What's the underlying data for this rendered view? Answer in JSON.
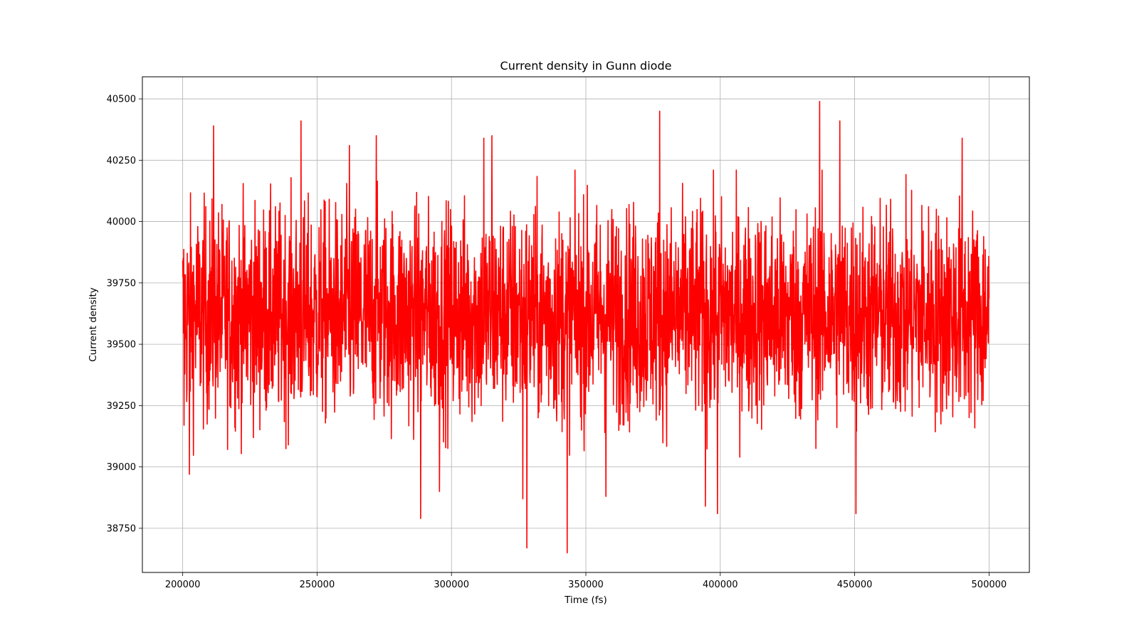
{
  "chart_data": {
    "type": "line",
    "title": "Current density in Gunn diode",
    "xlabel": "Time (fs)",
    "ylabel": "Current density",
    "xlim": [
      185000,
      515000
    ],
    "ylim": [
      38570,
      40590
    ],
    "xticks": [
      200000,
      250000,
      300000,
      350000,
      400000,
      450000,
      500000
    ],
    "yticks": [
      38750,
      39000,
      39250,
      39500,
      39750,
      40000,
      40250,
      40500
    ],
    "grid": true,
    "legend": "none",
    "series": [
      {
        "color": "#ff0000",
        "x_start": 200000,
        "x_end": 500000,
        "num_points": 3000,
        "mean": 39620,
        "typical_range": [
          39100,
          40150
        ],
        "extremes": [
          {
            "x": 200500,
            "y": 39170
          },
          {
            "x": 202500,
            "y": 38970
          },
          {
            "x": 211500,
            "y": 40390
          },
          {
            "x": 244000,
            "y": 40410
          },
          {
            "x": 262000,
            "y": 40310
          },
          {
            "x": 272000,
            "y": 40350
          },
          {
            "x": 288500,
            "y": 38790
          },
          {
            "x": 295500,
            "y": 38900
          },
          {
            "x": 312000,
            "y": 40340
          },
          {
            "x": 315000,
            "y": 40350
          },
          {
            "x": 326500,
            "y": 38870
          },
          {
            "x": 328000,
            "y": 38670
          },
          {
            "x": 343000,
            "y": 38650
          },
          {
            "x": 357500,
            "y": 38880
          },
          {
            "x": 377500,
            "y": 40450
          },
          {
            "x": 394500,
            "y": 38840
          },
          {
            "x": 399000,
            "y": 38810
          },
          {
            "x": 437000,
            "y": 40490
          },
          {
            "x": 444500,
            "y": 40410
          },
          {
            "x": 450500,
            "y": 38810
          },
          {
            "x": 490000,
            "y": 40340
          }
        ]
      }
    ]
  }
}
